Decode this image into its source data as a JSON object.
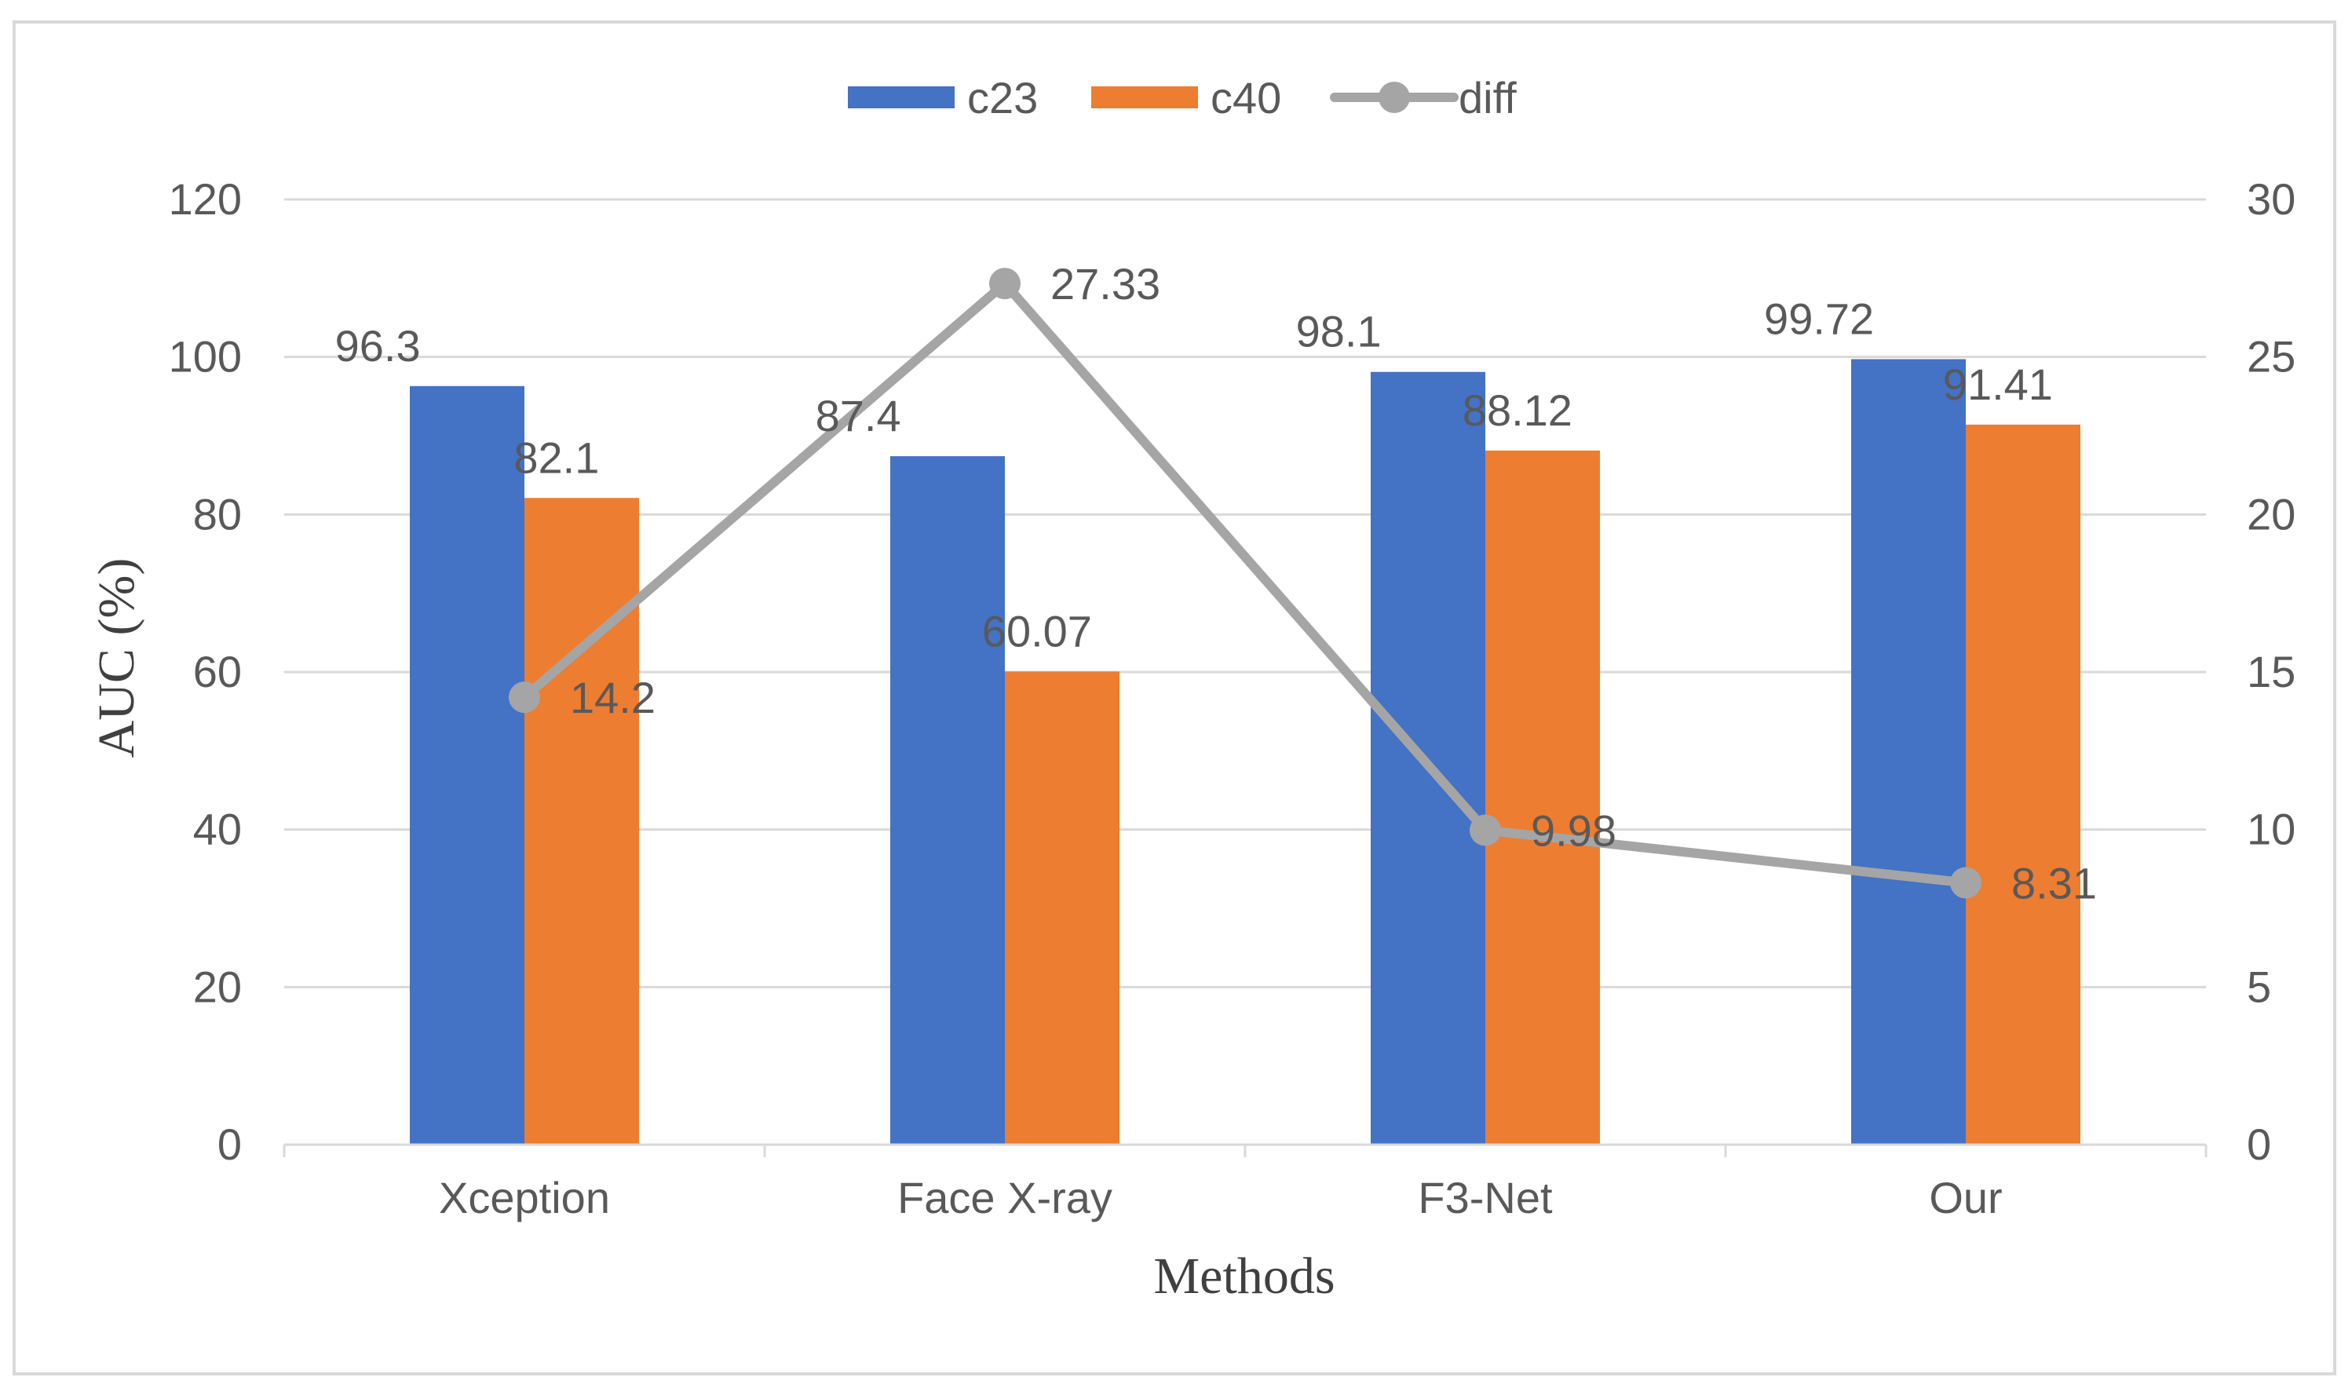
{
  "chart_data": {
    "type": "bar",
    "title": "",
    "xlabel": "Methods",
    "ylabel": "AUC (%)",
    "categories": [
      "Xception",
      "Face X-ray",
      "F3-Net",
      "Our"
    ],
    "ylim": [
      0,
      120
    ],
    "y_ticks": [
      "0",
      "20",
      "40",
      "60",
      "80",
      "100",
      "120"
    ],
    "y2lim": [
      0,
      30
    ],
    "y2_ticks": [
      "0",
      "5",
      "10",
      "15",
      "20",
      "25",
      "30"
    ],
    "grid": true,
    "legend_position": "top-center",
    "series": [
      {
        "name": "c23",
        "type": "bar",
        "axis": "left",
        "values": [
          96.3,
          87.4,
          98.1,
          99.72
        ],
        "labels": [
          "96.3",
          "87.4",
          "98.1",
          "99.72"
        ],
        "color": "#4472C4"
      },
      {
        "name": "c40",
        "type": "bar",
        "axis": "left",
        "values": [
          82.1,
          60.07,
          88.12,
          91.41
        ],
        "labels": [
          "82.1",
          "60.07",
          "88.12",
          "91.41"
        ],
        "color": "#ED7D31"
      },
      {
        "name": "diff",
        "type": "line",
        "axis": "right",
        "values": [
          14.2,
          27.33,
          9.98,
          8.31
        ],
        "labels": [
          "14.2",
          "27.33",
          "9.98",
          "8.31"
        ],
        "color": "#A5A5A5"
      }
    ]
  },
  "colors": {
    "axis_text": "#595959",
    "grid": "#D9D9D9",
    "frame": "#D9D9D9",
    "axis_title": "#404040"
  }
}
